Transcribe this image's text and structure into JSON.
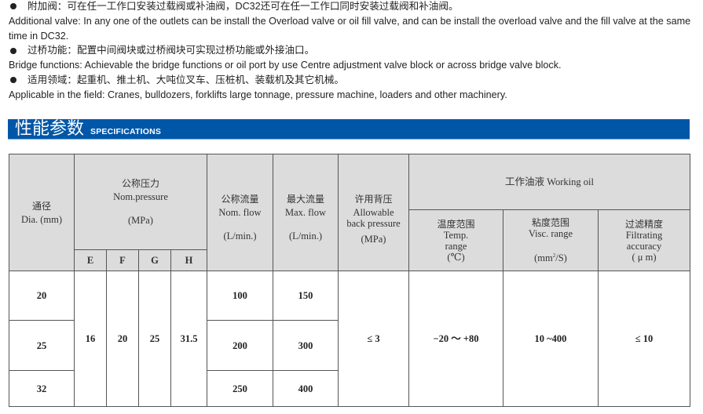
{
  "intro": {
    "lines": [
      {
        "bullet": true,
        "text": "附加阀：可在任一工作口安装过载阀或补油阀，DC32还可在任一工作口同时安装过载阀和补油阀。"
      },
      {
        "bullet": false,
        "text": "Additional valve: In any one of the outlets can be install the Overload valve or oil fill valve, and can be install the overload valve and the fill valve at the same time in DC32."
      },
      {
        "bullet": true,
        "text": "过桥功能：配置中间阀块或过桥阀块可实现过桥功能或外接油口。"
      },
      {
        "bullet": false,
        "text": "Bridge functions: Achievable the bridge functions or oil port by use Centre adjustment valve block or across bridge valve block."
      },
      {
        "bullet": true,
        "text": "适用领域：起重机、推土机、大吨位叉车、压桩机、装载机及其它机械。"
      },
      {
        "bullet": false,
        "text": "Applicable in the field: Cranes, bulldozers, forklifts large tonnage, pressure machine, loaders and other machinery."
      }
    ]
  },
  "section": {
    "title_zh": "性能参数",
    "title_en": "SPECIFICATIONS",
    "color": "#0057a8"
  },
  "table": {
    "headers": {
      "dia": {
        "zh": "通径",
        "en": "Dia. (mm)"
      },
      "nom_pressure": {
        "zh": "公称压力",
        "en": "Nom.pressure",
        "unit": "(MPa)",
        "sub": [
          "E",
          "F",
          "G",
          "H"
        ]
      },
      "nom_flow": {
        "zh": "公称流量",
        "en": "Nom. flow",
        "unit": "(L/min.)"
      },
      "max_flow": {
        "zh": "最大流量",
        "en": "Max. flow",
        "unit": "(L/min.)"
      },
      "back_pressure": {
        "zh": "许用背压",
        "en1": "Allowable",
        "en2": "back pressure",
        "unit": "(MPa)"
      },
      "working_oil": {
        "title": "工作油液 Working oil"
      },
      "temp": {
        "zh": "温度范围",
        "en1": "Temp.",
        "en2": "range",
        "unit": "(℃)"
      },
      "visc": {
        "zh": "粘度范围",
        "en": "Visc. range",
        "unit_pre": "(mm",
        "unit_sup": "2",
        "unit_post": "/S)"
      },
      "filt": {
        "zh": "过滤精度",
        "en1": "Filtrating",
        "en2": "accuracy",
        "unit": "( μ m)"
      }
    },
    "rows": [
      {
        "dia": "20",
        "nom_flow": "100",
        "max_flow": "150"
      },
      {
        "dia": "25",
        "nom_flow": "200",
        "max_flow": "300"
      },
      {
        "dia": "32",
        "nom_flow": "250",
        "max_flow": "400"
      }
    ],
    "shared": {
      "E": "16",
      "F": "20",
      "G": "25",
      "H": "31.5",
      "back_pressure": "≤ 3",
      "temp": "−20 ～ +80",
      "visc": "10 ~400",
      "filt": "≤ 10"
    }
  }
}
